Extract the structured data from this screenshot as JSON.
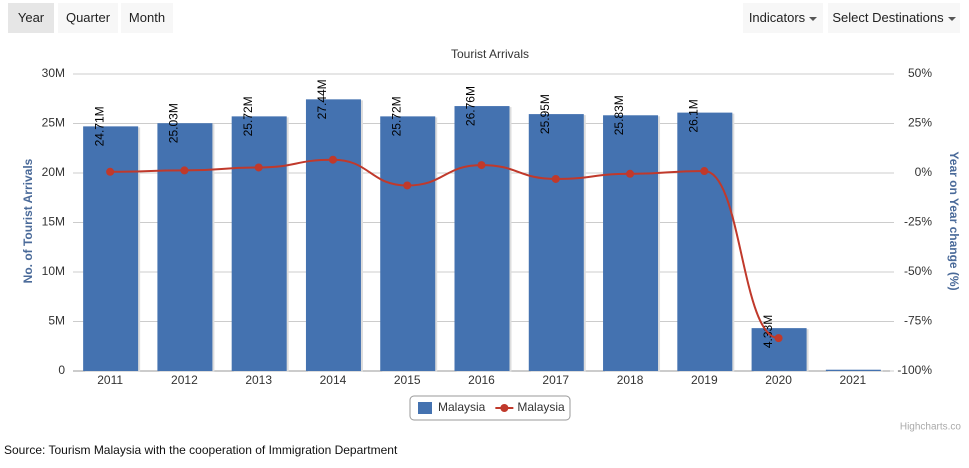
{
  "controls": {
    "periods": [
      "Year",
      "Quarter",
      "Month"
    ],
    "dropdowns": [
      "Indicators",
      "Select Destinations"
    ]
  },
  "chart_data": {
    "type": "bar_line",
    "title": "Tourist Arrivals",
    "y_label": "No. of Tourist Arrivals",
    "y2_label": "Year on Year change (%)",
    "categories": [
      "2011",
      "2012",
      "2013",
      "2014",
      "2015",
      "2016",
      "2017",
      "2018",
      "2019",
      "2020",
      "2021"
    ],
    "series": [
      {
        "name": "Malaysia",
        "kind": "bar",
        "color": "#4472b0",
        "values": [
          24.71,
          25.03,
          25.72,
          27.44,
          25.72,
          26.76,
          25.95,
          25.83,
          26.1,
          4.33,
          0.13
        ],
        "value_labels": [
          "24.71M",
          "25.03M",
          "25.72M",
          "27.44M",
          "25.72M",
          "26.76M",
          "25.95M",
          "25.83M",
          "26.1M",
          "4.33M",
          null
        ]
      },
      {
        "name": "Malaysia",
        "kind": "line",
        "axis": "y2",
        "color": "#c0392b",
        "values": [
          0.6,
          1.3,
          2.8,
          6.7,
          -6.3,
          4.0,
          -3.0,
          -0.4,
          1.0,
          -83.4,
          null
        ]
      }
    ],
    "ylim": [
      0,
      30
    ],
    "yticks": [
      0,
      {
        "value": 5,
        "label": "5M"
      },
      {
        "value": 10,
        "label": "10M"
      },
      {
        "value": 15,
        "label": "15M"
      },
      {
        "value": 20,
        "label": "20M"
      },
      {
        "value": 25,
        "label": "25M"
      },
      {
        "value": 30,
        "label": "30M"
      }
    ],
    "y2lim": [
      -100,
      50
    ],
    "y2ticks": [
      {
        "value": -100,
        "label": "-100%"
      },
      {
        "value": -75,
        "label": "-75%"
      },
      {
        "value": -50,
        "label": "-50%"
      },
      {
        "value": -25,
        "label": "-25%"
      },
      {
        "value": 0,
        "label": "0%"
      },
      {
        "value": 25,
        "label": "25%"
      },
      {
        "value": 50,
        "label": "50%"
      }
    ],
    "grid": true,
    "legend": "bottom"
  },
  "credits": "Highcharts.co",
  "source": "Source: Tourism Malaysia with the cooperation of Immigration Department"
}
